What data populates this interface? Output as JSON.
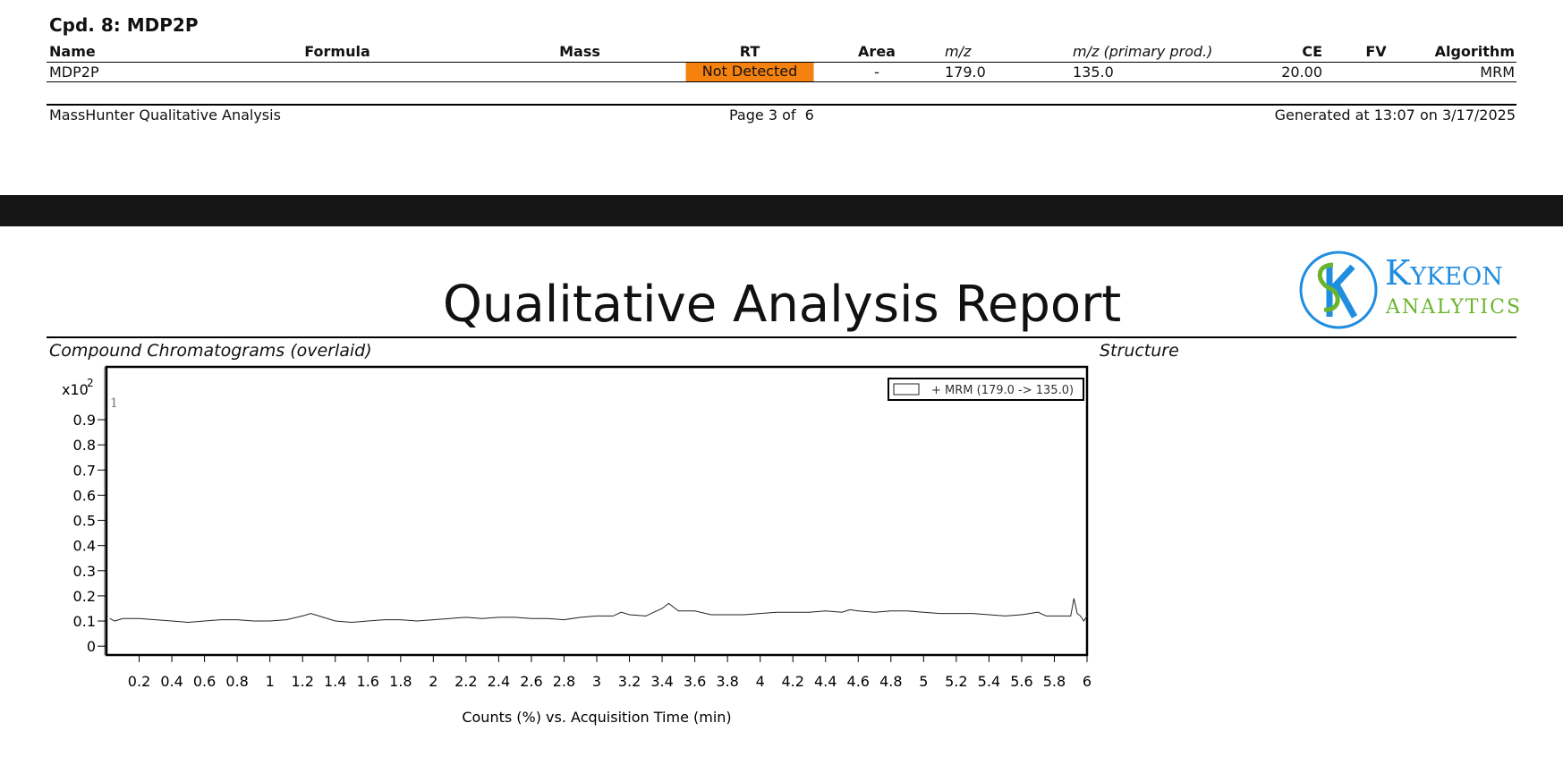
{
  "previous_page": {
    "compound_title": "Cpd. 8: MDP2P",
    "table": {
      "columns": [
        "Name",
        "Formula",
        "Mass",
        "RT",
        "Area",
        "m/z",
        "m/z (primary prod.)",
        "CE",
        "FV",
        "Algorithm"
      ],
      "rows": [
        [
          "MDP2P",
          null,
          null,
          "Not Detected",
          "-",
          "179.0",
          "135.0",
          "20.00",
          null,
          "MRM"
        ]
      ]
    },
    "footer": {
      "left": "MassHunter Qualitative Analysis",
      "center": "Page 3 of  6",
      "right": "Generated at 13:07 on 3/17/2025"
    }
  },
  "header": {
    "title": "Qualitative Analysis Report",
    "logo": {
      "line1": "Kykeon",
      "line2": "ANALYTICS"
    }
  },
  "sections": {
    "chromatograms": "Compound Chromatograms (overlaid)",
    "structure": "Structure"
  },
  "chart_data": {
    "type": "line",
    "x_label": "Counts (%) vs. Acquisition Time (min)",
    "y_multiplier": {
      "base": "x10",
      "exponent": "2"
    },
    "annotations": [
      {
        "text": "1"
      }
    ],
    "xlim": [
      0,
      6
    ],
    "ylim": [
      -0.035,
      1.11
    ],
    "xticks": [
      0.2,
      0.4,
      0.6,
      0.8,
      1,
      1.2,
      1.4,
      1.6,
      1.8,
      2,
      2.2,
      2.4,
      2.6,
      2.8,
      3,
      3.2,
      3.4,
      3.6,
      3.8,
      4,
      4.2,
      4.4,
      4.6,
      4.8,
      5,
      5.2,
      5.4,
      5.6,
      5.8,
      6
    ],
    "yticks": [
      0,
      0.1,
      0.2,
      0.3,
      0.4,
      0.5,
      0.6,
      0.7,
      0.8,
      0.9
    ],
    "legend_position": "top-right",
    "x": [
      0.02,
      0.05,
      0.1,
      0.2,
      0.3,
      0.4,
      0.5,
      0.6,
      0.7,
      0.8,
      0.9,
      1.0,
      1.1,
      1.2,
      1.25,
      1.3,
      1.4,
      1.5,
      1.6,
      1.7,
      1.8,
      1.9,
      2.0,
      2.1,
      2.2,
      2.3,
      2.4,
      2.5,
      2.6,
      2.7,
      2.8,
      2.9,
      3.0,
      3.1,
      3.15,
      3.2,
      3.3,
      3.4,
      3.44,
      3.5,
      3.6,
      3.7,
      3.8,
      3.9,
      4.0,
      4.1,
      4.2,
      4.3,
      4.4,
      4.5,
      4.55,
      4.6,
      4.7,
      4.8,
      4.9,
      5.0,
      5.1,
      5.2,
      5.3,
      5.4,
      5.5,
      5.6,
      5.7,
      5.75,
      5.8,
      5.9,
      5.92,
      5.94,
      5.96,
      5.98,
      6.0
    ],
    "series": [
      {
        "name": "+ MRM (179.0 -> 135.0)",
        "color": "#222222",
        "values": [
          0.11,
          0.1,
          0.11,
          0.11,
          0.105,
          0.1,
          0.095,
          0.1,
          0.105,
          0.105,
          0.1,
          0.1,
          0.105,
          0.12,
          0.13,
          0.12,
          0.1,
          0.095,
          0.1,
          0.105,
          0.105,
          0.1,
          0.105,
          0.11,
          0.115,
          0.11,
          0.115,
          0.115,
          0.11,
          0.11,
          0.105,
          0.115,
          0.12,
          0.12,
          0.135,
          0.125,
          0.12,
          0.15,
          0.17,
          0.14,
          0.14,
          0.125,
          0.125,
          0.125,
          0.13,
          0.135,
          0.135,
          0.135,
          0.14,
          0.135,
          0.145,
          0.14,
          0.135,
          0.14,
          0.14,
          0.135,
          0.13,
          0.13,
          0.13,
          0.125,
          0.12,
          0.125,
          0.135,
          0.12,
          0.12,
          0.12,
          0.19,
          0.13,
          0.12,
          0.1,
          0.12
        ]
      }
    ]
  }
}
